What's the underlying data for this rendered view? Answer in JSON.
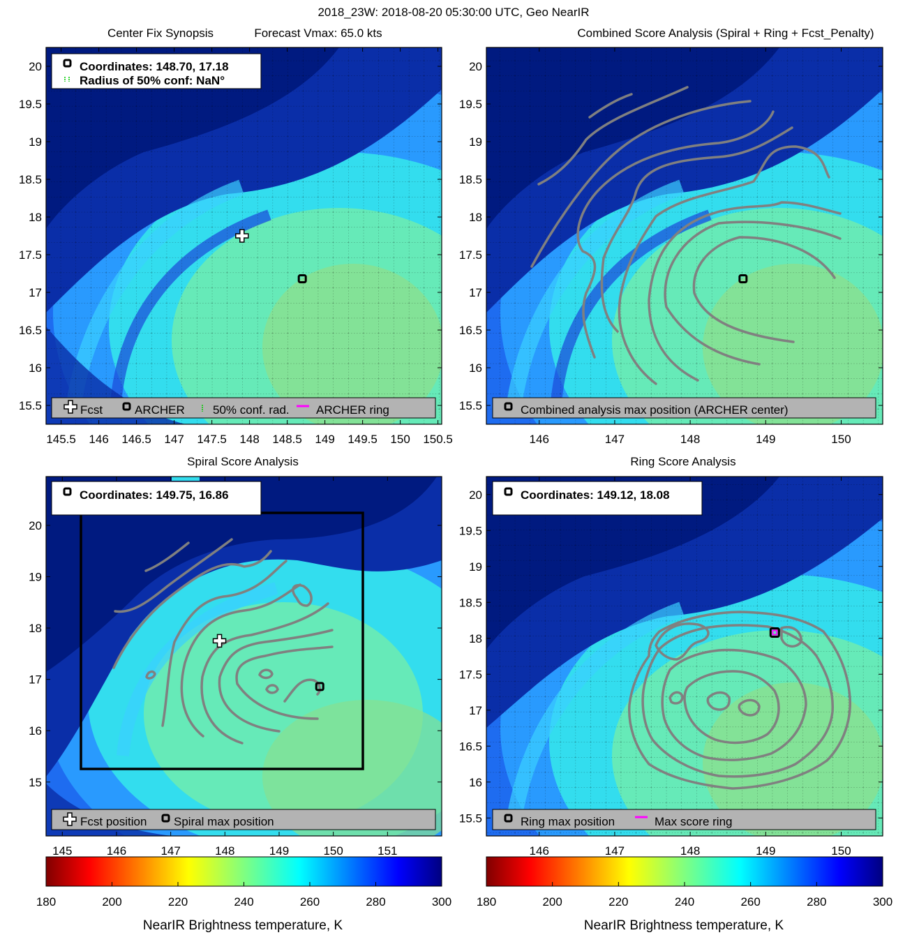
{
  "figure": {
    "title": "2018_23W: 2018-08-20 05:30:00 UTC, Geo NearIR"
  },
  "colors": {
    "frame": "#000000",
    "contour": "#808080",
    "legend_bg": "#b3b3b3",
    "ring": "#ff00ff",
    "conf_radius": "#00cc00"
  },
  "chart_data": [
    {
      "id": "center_fix",
      "type": "heatmap",
      "title": "Center Fix Synopsis",
      "subtitle": "Forecast Vmax: 65.0 kts",
      "xlim": [
        145.3,
        150.55
      ],
      "ylim": [
        15.25,
        20.25
      ],
      "xticks": [
        145.5,
        146,
        146.5,
        147,
        147.5,
        148,
        148.5,
        149,
        149.5,
        150,
        150.5
      ],
      "xtick_labels": [
        "145.5",
        "146",
        "146.5",
        "147",
        "147.5",
        "148",
        "148.5",
        "149",
        "149.5",
        "150",
        "150.5"
      ],
      "yticks": [
        15.5,
        16,
        16.5,
        17,
        17.5,
        18,
        18.5,
        19,
        19.5,
        20
      ],
      "ytick_labels": [
        "15.5",
        "16",
        "16.5",
        "17",
        "17.5",
        "18",
        "18.5",
        "19",
        "19.5",
        "20"
      ],
      "grid": true,
      "info_lines": [
        "Coordinates: 148.70, 17.18",
        "Radius of 50% conf: NaN°"
      ],
      "legend_items": [
        "Fcst",
        "ARCHER",
        "50% conf. rad.",
        "ARCHER ring"
      ],
      "markers": [
        {
          "kind": "fcst",
          "x": 147.9,
          "y": 17.75
        },
        {
          "kind": "archer",
          "x": 148.7,
          "y": 17.18
        }
      ]
    },
    {
      "id": "combined",
      "type": "heatmap",
      "title": "Combined Score Analysis (Spiral + Ring + Fcst_Penalty)",
      "xlim": [
        145.3,
        150.55
      ],
      "ylim": [
        15.25,
        20.25
      ],
      "xticks": [
        146,
        147,
        148,
        149,
        150
      ],
      "xtick_labels": [
        "146",
        "147",
        "148",
        "149",
        "150"
      ],
      "yticks": [
        15.5,
        16,
        16.5,
        17,
        17.5,
        18,
        18.5,
        19,
        19.5,
        20
      ],
      "ytick_labels": [
        "15.5",
        "16",
        "16.5",
        "17",
        "17.5",
        "18",
        "18.5",
        "19",
        "19.5",
        "20"
      ],
      "grid": true,
      "legend_items": [
        "Combined analysis max position (ARCHER center)"
      ],
      "markers": [
        {
          "kind": "archer",
          "x": 148.7,
          "y": 17.18
        }
      ]
    },
    {
      "id": "spiral",
      "type": "heatmap",
      "title": "Spiral Score Analysis",
      "xlim": [
        144.7,
        152.0
      ],
      "ylim": [
        13.95,
        20.95
      ],
      "xticks": [
        145,
        146,
        147,
        148,
        149,
        150,
        151
      ],
      "xtick_labels": [
        "145",
        "146",
        "147",
        "148",
        "149",
        "150",
        "151"
      ],
      "yticks": [
        15,
        16,
        17,
        18,
        19,
        20
      ],
      "ytick_labels": [
        "15",
        "16",
        "17",
        "18",
        "19",
        "20"
      ],
      "grid": false,
      "info_lines": [
        "Coordinates: 149.75, 16.86"
      ],
      "legend_items": [
        "Fcst position",
        "Spiral max position"
      ],
      "markers": [
        {
          "kind": "fcst",
          "x": 147.9,
          "y": 17.75
        },
        {
          "kind": "archer",
          "x": 149.75,
          "y": 16.86
        }
      ]
    },
    {
      "id": "ring",
      "type": "heatmap",
      "title": "Ring Score Analysis",
      "xlim": [
        145.3,
        150.55
      ],
      "ylim": [
        15.25,
        20.25
      ],
      "xticks": [
        146,
        147,
        148,
        149,
        150
      ],
      "xtick_labels": [
        "146",
        "147",
        "148",
        "149",
        "150"
      ],
      "yticks": [
        15.5,
        16,
        16.5,
        17,
        17.5,
        18,
        18.5,
        19,
        19.5,
        20
      ],
      "ytick_labels": [
        "15.5",
        "16",
        "16.5",
        "17",
        "17.5",
        "18",
        "18.5",
        "19",
        "19.5",
        "20"
      ],
      "grid": true,
      "info_lines": [
        "Coordinates: 149.12, 18.08"
      ],
      "legend_items": [
        "Ring max position",
        "Max score ring"
      ],
      "markers": [
        {
          "kind": "ring",
          "x": 149.12,
          "y": 18.08
        }
      ]
    }
  ],
  "colorbar": {
    "label": "NearIR Brightness temperature, K",
    "range": [
      180,
      300
    ],
    "ticks": [
      180,
      200,
      220,
      240,
      260,
      280,
      300
    ],
    "tick_labels": [
      "180",
      "200",
      "220",
      "240",
      "260",
      "280",
      "300"
    ],
    "colormap": "jet"
  }
}
